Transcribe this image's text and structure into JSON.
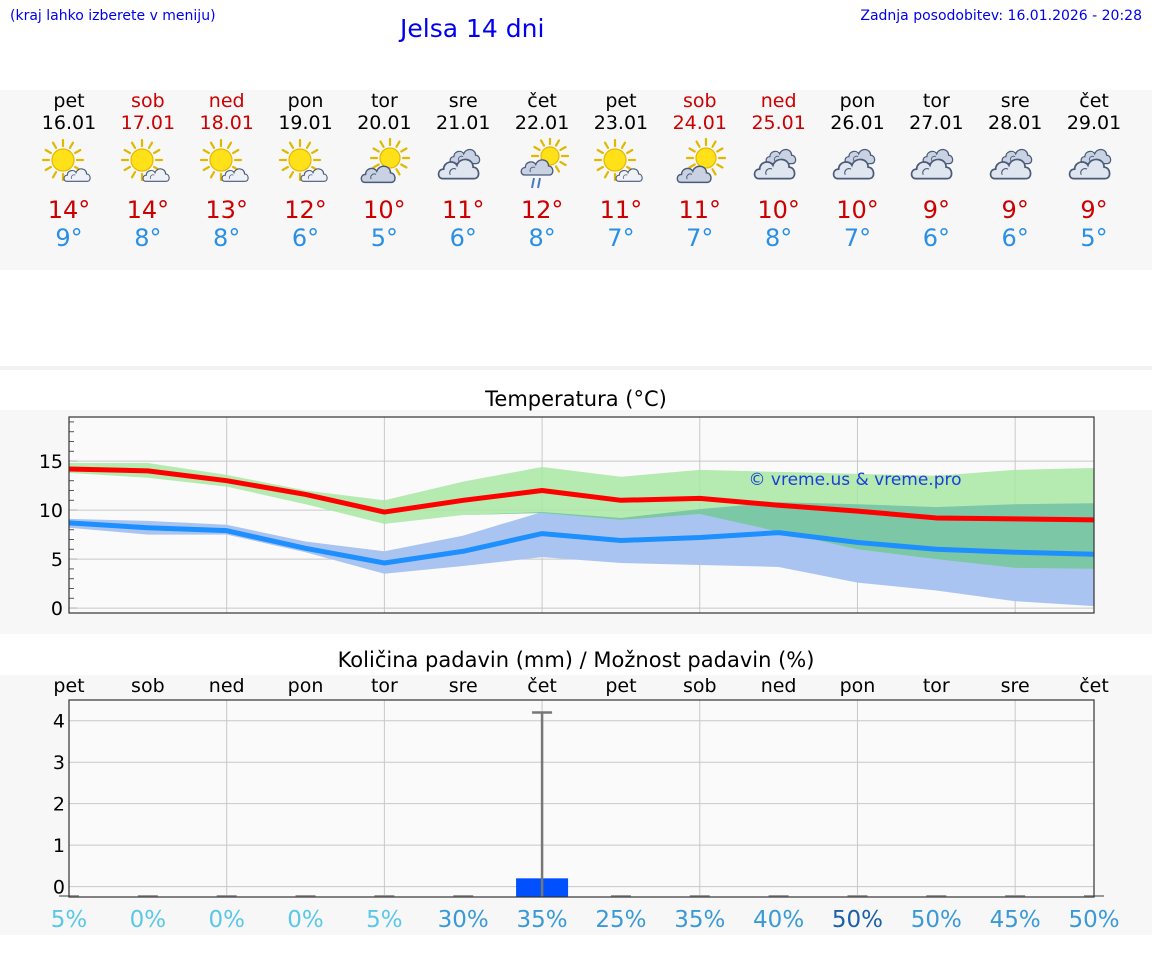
{
  "header": {
    "menu_hint": "(kraj lahko izberete v meniju)",
    "title": "Jelsa 14 dni",
    "last_update": "Zadnja posodobitev: 16.01.2026 - 20:28"
  },
  "colors": {
    "title_blue": "#0000ee",
    "weekend_red": "#cc0000",
    "max_line": "#ff0000",
    "min_line": "#1e8fff",
    "max_band": "#a8e6a3",
    "min_band": "#aac4f2",
    "overlap_band": "#7cc7a6",
    "bar_blue": "#0050ff"
  },
  "days": [
    {
      "name": "pet",
      "date": "16.01",
      "weekend": false,
      "icon": "sun-cloud-icon",
      "tmax": "14°",
      "tmin": "9°"
    },
    {
      "name": "sob",
      "date": "17.01",
      "weekend": true,
      "icon": "sun-cloud-icon",
      "tmax": "14°",
      "tmin": "8°"
    },
    {
      "name": "ned",
      "date": "18.01",
      "weekend": true,
      "icon": "sun-cloud-icon",
      "tmax": "13°",
      "tmin": "8°"
    },
    {
      "name": "pon",
      "date": "19.01",
      "weekend": false,
      "icon": "sun-cloud-icon",
      "tmax": "12°",
      "tmin": "6°"
    },
    {
      "name": "tor",
      "date": "20.01",
      "weekend": false,
      "icon": "cloud-sun-icon",
      "tmax": "10°",
      "tmin": "5°"
    },
    {
      "name": "sre",
      "date": "21.01",
      "weekend": false,
      "icon": "cloud-icon",
      "tmax": "11°",
      "tmin": "6°"
    },
    {
      "name": "čet",
      "date": "22.01",
      "weekend": false,
      "icon": "cloud-sun-rain-icon",
      "tmax": "12°",
      "tmin": "8°"
    },
    {
      "name": "pet",
      "date": "23.01",
      "weekend": false,
      "icon": "sun-cloud-icon",
      "tmax": "11°",
      "tmin": "7°"
    },
    {
      "name": "sob",
      "date": "24.01",
      "weekend": true,
      "icon": "cloud-sun-icon",
      "tmax": "11°",
      "tmin": "7°"
    },
    {
      "name": "ned",
      "date": "25.01",
      "weekend": true,
      "icon": "cloud-icon",
      "tmax": "10°",
      "tmin": "8°"
    },
    {
      "name": "pon",
      "date": "26.01",
      "weekend": false,
      "icon": "cloud-icon",
      "tmax": "10°",
      "tmin": "7°"
    },
    {
      "name": "tor",
      "date": "27.01",
      "weekend": false,
      "icon": "cloud-icon",
      "tmax": "9°",
      "tmin": "6°"
    },
    {
      "name": "sre",
      "date": "28.01",
      "weekend": false,
      "icon": "cloud-icon",
      "tmax": "9°",
      "tmin": "6°"
    },
    {
      "name": "čet",
      "date": "29.01",
      "weekend": false,
      "icon": "cloud-icon",
      "tmax": "9°",
      "tmin": "5°"
    }
  ],
  "chart_data": [
    {
      "type": "line",
      "title": "Temperatura (°C)",
      "watermark": "© vreme.us & vreme.pro",
      "x": [
        0,
        1,
        2,
        3,
        4,
        5,
        6,
        7,
        8,
        9,
        10,
        11,
        12,
        13
      ],
      "ylim": [
        -0.5,
        19.5
      ],
      "yticks": [
        0,
        5,
        10,
        15
      ],
      "xlabel": "",
      "ylabel": "",
      "series": [
        {
          "name": "max",
          "values": [
            14.2,
            14.0,
            13.0,
            11.6,
            9.8,
            11.0,
            12.0,
            11.0,
            11.2,
            10.5,
            9.9,
            9.2,
            9.1,
            9.0
          ],
          "band_low": [
            13.8,
            13.3,
            12.4,
            10.6,
            8.6,
            9.5,
            9.7,
            9.0,
            9.6,
            7.8,
            6.0,
            5.0,
            4.1,
            4.0
          ],
          "band_high": [
            14.8,
            14.8,
            13.6,
            12.0,
            11.0,
            12.9,
            14.4,
            13.4,
            14.1,
            13.9,
            13.7,
            13.5,
            14.1,
            14.3
          ]
        },
        {
          "name": "min",
          "values": [
            8.7,
            8.2,
            7.9,
            6.1,
            4.6,
            5.8,
            7.6,
            6.9,
            7.2,
            7.7,
            6.7,
            6.0,
            5.7,
            5.5
          ],
          "band_low": [
            8.2,
            7.5,
            7.5,
            5.7,
            3.5,
            4.3,
            5.2,
            4.6,
            4.4,
            4.2,
            2.6,
            1.8,
            0.7,
            0.2
          ],
          "band_high": [
            9.1,
            8.9,
            8.5,
            6.8,
            5.8,
            7.4,
            9.8,
            9.2,
            10.1,
            10.8,
            10.6,
            10.3,
            10.6,
            10.7
          ]
        }
      ]
    },
    {
      "type": "bar",
      "title": "Količina padavin (mm) / Možnost padavin (%)",
      "categories": [
        "pet",
        "sob",
        "ned",
        "pon",
        "tor",
        "sre",
        "čet",
        "pet",
        "sob",
        "ned",
        "pon",
        "tor",
        "sre",
        "čet"
      ],
      "values": [
        0,
        0,
        0,
        0,
        0,
        0,
        0.2,
        0,
        0,
        0,
        0,
        0,
        0,
        0
      ],
      "error_high": [
        0,
        0,
        0,
        0,
        0,
        0,
        4.2,
        0,
        0,
        0,
        0,
        0,
        0,
        0
      ],
      "probability": [
        "5%",
        "0%",
        "0%",
        "0%",
        "5%",
        "30%",
        "35%",
        "25%",
        "35%",
        "40%",
        "50%",
        "50%",
        "45%",
        "50%"
      ],
      "probability_colors": [
        "#5bc8e8",
        "#5bc8e8",
        "#5bc8e8",
        "#5bc8e8",
        "#5bc8e8",
        "#3a9ad8",
        "#3a9ad8",
        "#3a9ad8",
        "#3a9ad8",
        "#3a9ad8",
        "#1d5fa8",
        "#3a9ad8",
        "#3a9ad8",
        "#3a9ad8"
      ],
      "ylim": [
        -0.25,
        4.5
      ],
      "yticks": [
        0,
        1,
        2,
        3,
        4
      ],
      "xlabel": "",
      "ylabel": ""
    }
  ]
}
